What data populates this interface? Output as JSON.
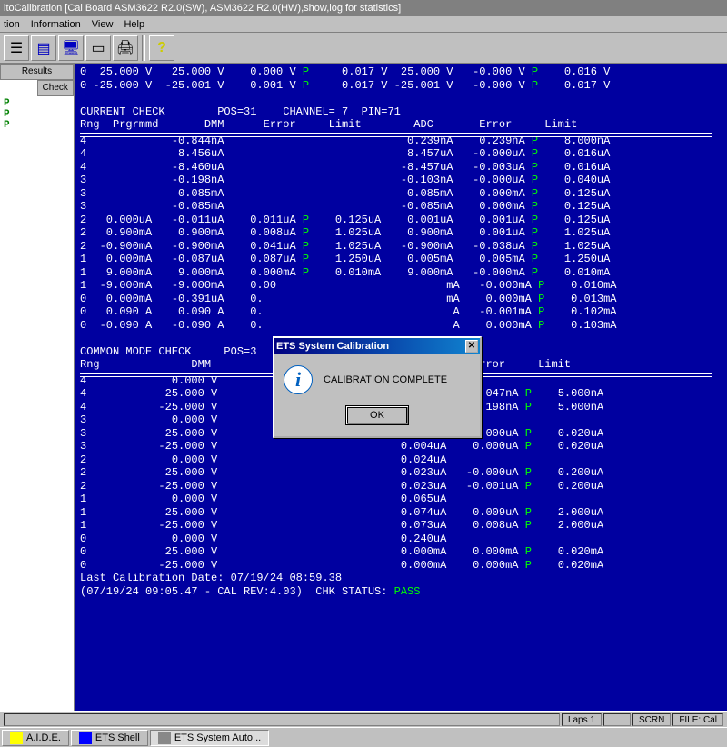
{
  "colors": {
    "terminal_bg": "#0000a0",
    "terminal_fg": "#ffffff",
    "pass": "#00ff00",
    "chrome": "#c0c0c0"
  },
  "title": "itoCalibration [Cal Board ASM3622 R2.0(SW), ASM3622 R2.0(HW),show,log for statistics]",
  "menus": [
    "tion",
    "Information",
    "View",
    "Help"
  ],
  "toolbar_icons": [
    "list-icon",
    "sheet-icon",
    "monitor-icon",
    "blank",
    "print-icon",
    "sep",
    "help-icon"
  ],
  "sidebar": {
    "tabs": [
      "Results",
      "Check"
    ],
    "items": [
      "P",
      "P",
      "P"
    ]
  },
  "top_rows": [
    "0  25.000 V   25.000 V    0.000 V P     0.017 V  25.000 V   -0.000 V P    0.016 V",
    "0 -25.000 V  -25.001 V    0.001 V P     0.017 V -25.001 V   -0.000 V P    0.017 V"
  ],
  "current_check": {
    "title": "CURRENT CHECK        POS=31    CHANNEL= 7  PIN=71",
    "header": "Rng  Prgrmmd       DMM      Error     Limit        ADC       Error     Limit",
    "rows": [
      "4             -0.844nA                            0.239nA    0.239nA P    8.000nA",
      "4              8.456uA                            8.457uA   -0.000uA P    0.016uA",
      "4             -8.460uA                           -8.457uA   -0.003uA P    0.016uA",
      "3             -0.198nA                           -0.103nA   -0.000uA P    0.040uA",
      "3              0.085mA                            0.085mA    0.000mA P    0.125uA",
      "3             -0.085mA                           -0.085mA    0.000mA P    0.125uA",
      "2   0.000uA   -0.011uA    0.011uA P    0.125uA    0.001uA    0.001uA P    0.125uA",
      "2   0.900mA    0.900mA    0.008uA P    1.025uA    0.900mA    0.001uA P    1.025uA",
      "2  -0.900mA   -0.900mA    0.041uA P    1.025uA   -0.900mA   -0.038uA P    1.025uA",
      "1   0.000mA   -0.087uA    0.087uA P    1.250uA    0.005mA    0.005mA P    1.250uA",
      "1   9.000mA    9.000mA    0.000mA P    0.010mA    9.000mA   -0.000mA P    0.010mA",
      "1  -9.000mA   -9.000mA    0.00                          mA   -0.000mA P    0.010mA",
      "0   0.000mA   -0.391uA    0.                            mA    0.000mA P    0.013mA",
      "0   0.090 A    0.090 A    0.                             A   -0.001mA P    0.102mA",
      "0  -0.090 A   -0.090 A    0.                             A    0.000mA P    0.103mA"
    ]
  },
  "common_mode": {
    "title": "COMMON MODE CHECK     POS=3",
    "header": "Rng              DMM                                        Error     Limit",
    "rows": [
      "4             0.000 V                            1.474nA",
      "4            25.000 V                            1.427nA   -0.047nA P    5.000nA",
      "4           -25.000 V                            1.276nA   -0.198nA P    5.000nA",
      "3             0.000 V                            3.689nA",
      "3            25.000 V                            0.004uA    0.000uA P    0.020uA",
      "3           -25.000 V                            0.004uA    0.000uA P    0.020uA",
      "2             0.000 V                            0.024uA",
      "2            25.000 V                            0.023uA   -0.000uA P    0.200uA",
      "2           -25.000 V                            0.023uA   -0.001uA P    0.200uA",
      "1             0.000 V                            0.065uA",
      "1            25.000 V                            0.074uA    0.009uA P    2.000uA",
      "1           -25.000 V                            0.073uA    0.008uA P    2.000uA",
      "0             0.000 V                            0.240uA",
      "0            25.000 V                            0.000mA    0.000mA P    0.020mA",
      "0           -25.000 V                            0.000mA    0.000mA P    0.020mA"
    ]
  },
  "footer1": "Last Calibration Date: 07/19/24 08:59.38",
  "footer2": "(07/19/24 09:05.47 - CAL REV:4.03)  CHK STATUS: ",
  "footer2_status": "PASS",
  "dialog": {
    "title": "ETS System Calibration",
    "msg": "CALIBRATION COMPLETE",
    "ok": "OK"
  },
  "status": {
    "laps": "Laps 1",
    "scrn": "SCRN",
    "file": "FILE: Cal"
  },
  "taskbar": [
    {
      "label": "A.I.D.E.",
      "active": false
    },
    {
      "label": "ETS Shell",
      "active": false
    },
    {
      "label": "ETS System Auto...",
      "active": true
    }
  ]
}
